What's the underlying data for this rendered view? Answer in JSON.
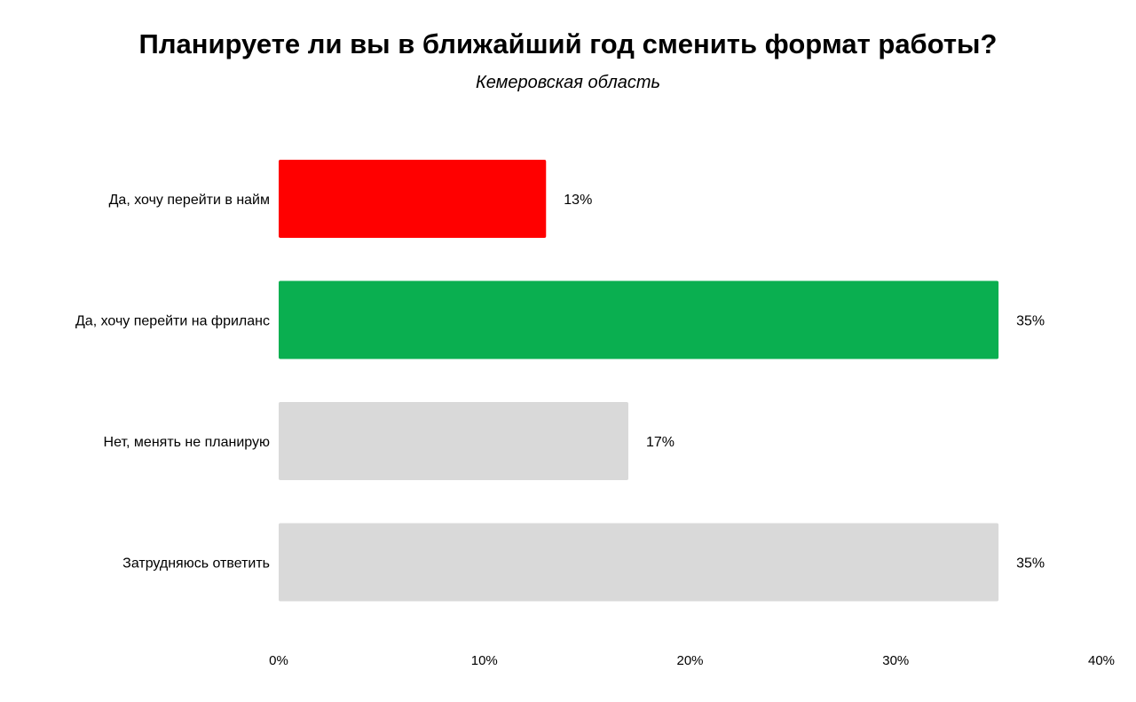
{
  "chart_data": {
    "type": "bar",
    "orientation": "horizontal",
    "title": "Планируете ли вы в ближайший год сменить формат работы?",
    "subtitle": "Кемеровская область",
    "xlabel": "",
    "ylabel": "",
    "categories": [
      "Да, хочу перейти в найм",
      "Да, хочу перейти на фриланс",
      "Нет, менять не планирую",
      "Затрудняюсь ответить"
    ],
    "values": [
      13,
      35,
      17,
      35
    ],
    "value_labels": [
      "13%",
      "35%",
      "17%",
      "35%"
    ],
    "colors": [
      "#ff0000",
      "#0aaf50",
      "#d9d9d9",
      "#d9d9d9"
    ],
    "xlim": [
      0,
      40
    ],
    "x_ticks": [
      0,
      10,
      20,
      30,
      40
    ],
    "x_tick_labels": [
      "0%",
      "10%",
      "20%",
      "30%",
      "40%"
    ],
    "grid": false,
    "legend": "none"
  }
}
